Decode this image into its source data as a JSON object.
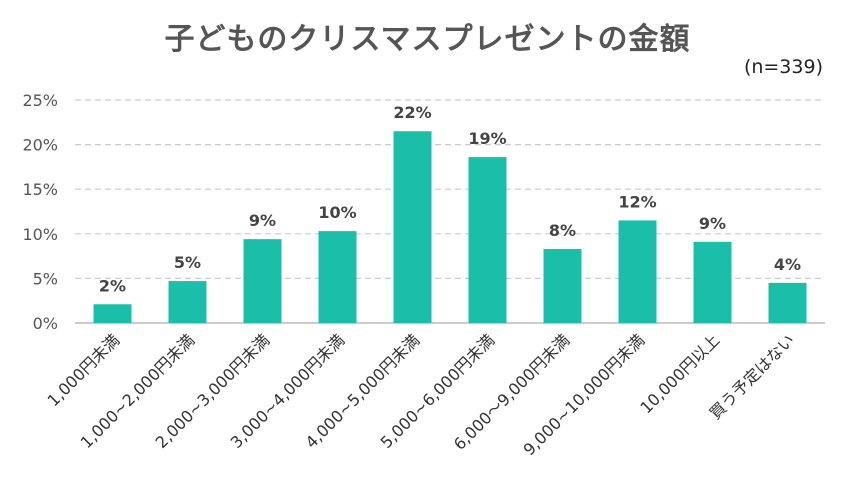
{
  "chart_data": {
    "type": "bar",
    "title": "子どものクリスマスプレゼントの金額",
    "note": "(n=339)",
    "categories": [
      "1,000円未満",
      "1,000~2,000円未満",
      "2,000~3,000円未満",
      "3,000~4,000円未満",
      "4,000~5,000円未満",
      "5,000~6,000円未満",
      "6,000～9,000円未満",
      "9,000~10,000円未満",
      "10,000円以上",
      "買う予定はない"
    ],
    "values": [
      2.1,
      4.7,
      9.4,
      10.3,
      21.5,
      18.6,
      8.3,
      11.5,
      9.1,
      4.5
    ],
    "data_labels": [
      "2%",
      "5%",
      "9%",
      "10%",
      "22%",
      "19%",
      "8%",
      "12%",
      "9%",
      "4%"
    ],
    "y_ticks": [
      0,
      5,
      10,
      15,
      20,
      25
    ],
    "y_tick_labels": [
      "0%",
      "5%",
      "10%",
      "15%",
      "20%",
      "25%"
    ],
    "ylim": [
      0,
      25
    ],
    "grid": true,
    "legend": "none",
    "colors": {
      "bar": "#1bbfa9",
      "grid": "#cccccc",
      "axis": "#bbbbbb"
    }
  }
}
